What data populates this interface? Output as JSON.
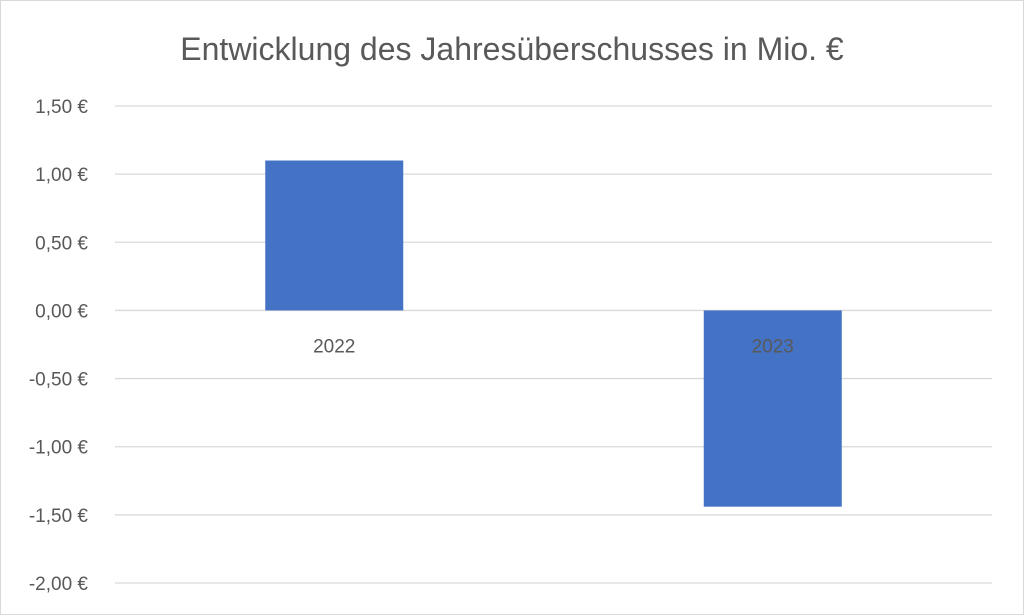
{
  "chart_data": {
    "type": "bar",
    "title": "Entwicklung des Jahresüberschusses in Mio. €",
    "xlabel": "",
    "ylabel": "",
    "categories": [
      "2022",
      "2023"
    ],
    "values": [
      1.1,
      -1.44
    ],
    "ylim": [
      -2.0,
      1.5
    ],
    "yticks": [
      1.5,
      1.0,
      0.5,
      0.0,
      -0.5,
      -1.0,
      -1.5,
      -2.0
    ],
    "ytick_labels": [
      "1,50 €",
      "1,00 €",
      "0,50 €",
      "0,00 €",
      "-0,50 €",
      "-1,00 €",
      "-1,50 €",
      "-2,00 €"
    ],
    "grid": true,
    "legend": "none",
    "bar_color": "#4472C4",
    "grid_color": "#d9d9d9"
  }
}
